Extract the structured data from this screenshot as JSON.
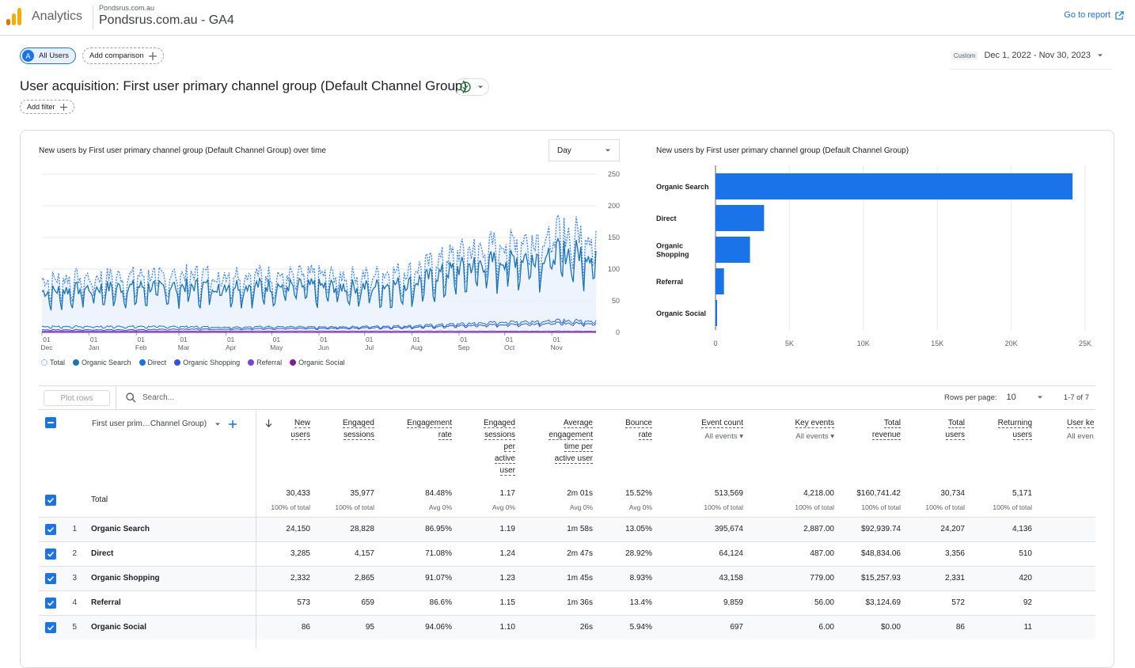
{
  "header": {
    "app_name": "Analytics",
    "account_name": "Pondsrus.com.au",
    "property_name": "Pondsrus.com.au - GA4",
    "goto_report": "Go to report"
  },
  "toolbar": {
    "segment_avatar": "A",
    "segment_label": "All Users",
    "add_comparison": "Add comparison",
    "date_badge": "Custom",
    "date_range": "Dec 1, 2022 - Nov 30, 2023",
    "add_filter": "Add filter"
  },
  "report": {
    "title": "User acquisition: First user primary channel group (Default Channel Group)"
  },
  "line_chart": {
    "title": "New users by First user primary channel group (Default Channel Group) over time",
    "granularity": "Day",
    "y_ticks": [
      "250",
      "200",
      "150",
      "100",
      "50",
      "0"
    ],
    "x_ticks": [
      {
        "day": "01",
        "month": "Dec"
      },
      {
        "day": "01",
        "month": "Jan"
      },
      {
        "day": "01",
        "month": "Feb"
      },
      {
        "day": "01",
        "month": "Mar"
      },
      {
        "day": "01",
        "month": "Apr"
      },
      {
        "day": "01",
        "month": "May"
      },
      {
        "day": "01",
        "month": "Jun"
      },
      {
        "day": "01",
        "month": "Jul"
      },
      {
        "day": "01",
        "month": "Aug"
      },
      {
        "day": "01",
        "month": "Sep"
      },
      {
        "day": "01",
        "month": "Oct"
      },
      {
        "day": "01",
        "month": "Nov"
      }
    ],
    "legend": [
      {
        "label": "Total",
        "color": "#4285f4"
      },
      {
        "label": "Organic Search",
        "color": "#1a73b8"
      },
      {
        "label": "Direct",
        "color": "#1a73e8"
      },
      {
        "label": "Organic Shopping",
        "color": "#3c4fd9"
      },
      {
        "label": "Referral",
        "color": "#7b3fe4"
      },
      {
        "label": "Organic Social",
        "color": "#7b1fa2"
      }
    ]
  },
  "bar_chart": {
    "title": "New users by First user primary channel group (Default Channel Group)",
    "x_ticks": [
      "0",
      "5K",
      "10K",
      "15K",
      "20K",
      "25K"
    ]
  },
  "chart_data": [
    {
      "type": "line",
      "title": "New users by First user primary channel group (Default Channel Group) over time",
      "ylim": [
        0,
        250
      ],
      "x": [
        "Dec",
        "Jan",
        "Feb",
        "Mar",
        "Apr",
        "May",
        "Jun",
        "Jul",
        "Aug",
        "Sep",
        "Oct",
        "Nov"
      ],
      "series": [
        {
          "name": "Total",
          "values": [
            78,
            82,
            84,
            86,
            88,
            86,
            85,
            84,
            92,
            118,
            135,
            148
          ]
        },
        {
          "name": "Organic Search",
          "values": [
            60,
            65,
            67,
            68,
            70,
            69,
            68,
            67,
            73,
            95,
            108,
            118
          ]
        },
        {
          "name": "Direct",
          "values": [
            9,
            9,
            9,
            9,
            8,
            9,
            8,
            9,
            10,
            13,
            16,
            18
          ]
        },
        {
          "name": "Organic Shopping",
          "values": [
            4,
            4,
            4,
            5,
            5,
            6,
            6,
            7,
            8,
            10,
            12,
            14
          ]
        },
        {
          "name": "Referral",
          "values": [
            2,
            2,
            2,
            2,
            2,
            2,
            2,
            2,
            2,
            2,
            2,
            2
          ]
        },
        {
          "name": "Organic Social",
          "values": [
            0.3,
            0.3,
            0.3,
            0.3,
            0.3,
            0.2,
            0.2,
            0.2,
            0.2,
            0.2,
            0.3,
            0.3
          ]
        }
      ]
    },
    {
      "type": "bar",
      "orientation": "horizontal",
      "title": "New users by First user primary channel group (Default Channel Group)",
      "categories": [
        "Organic Search",
        "Direct",
        "Organic Shopping",
        "Referral",
        "Organic Social"
      ],
      "values": [
        24150,
        3285,
        2332,
        573,
        86
      ],
      "xlim": [
        0,
        25000
      ]
    }
  ],
  "table": {
    "plot_rows": "Plot rows",
    "search_placeholder": "Search...",
    "rows_per_page_label": "Rows per page:",
    "rows_per_page": "10",
    "pagination": "1-7 of 7",
    "dimension_header": "First user prim…Channel Group)",
    "columns": [
      {
        "lines": [
          "New",
          "users"
        ],
        "sub": ""
      },
      {
        "lines": [
          "Engaged",
          "sessions"
        ],
        "sub": ""
      },
      {
        "lines": [
          "Engagement",
          "rate"
        ],
        "sub": ""
      },
      {
        "lines": [
          "Engaged",
          "sessions",
          "per",
          "active",
          "user"
        ],
        "sub": ""
      },
      {
        "lines": [
          "Average",
          "engagement",
          "time per",
          "active user"
        ],
        "sub": ""
      },
      {
        "lines": [
          "Bounce",
          "rate"
        ],
        "sub": ""
      },
      {
        "lines": [
          "Event count"
        ],
        "sub": "All events"
      },
      {
        "lines": [
          "Key events"
        ],
        "sub": "All events"
      },
      {
        "lines": [
          "Total",
          "revenue"
        ],
        "sub": ""
      },
      {
        "lines": [
          "Total",
          "users"
        ],
        "sub": ""
      },
      {
        "lines": [
          "Returning",
          "users"
        ],
        "sub": ""
      },
      {
        "lines": [
          "User ke"
        ],
        "sub": "All even"
      }
    ],
    "total": {
      "label": "Total",
      "values": [
        "30,433",
        "35,977",
        "84.48%",
        "1.17",
        "2m 01s",
        "15.52%",
        "513,569",
        "4,218.00",
        "$160,741.42",
        "30,734",
        "5,171"
      ],
      "subs": [
        "100% of total",
        "100% of total",
        "Avg 0%",
        "Avg 0%",
        "Avg 0%",
        "Avg 0%",
        "100% of total",
        "100% of total",
        "100% of total",
        "100% of total",
        "100% of total"
      ]
    },
    "rows": [
      {
        "num": "1",
        "name": "Organic Search",
        "values": [
          "24,150",
          "28,828",
          "86.95%",
          "1.19",
          "1m 58s",
          "13.05%",
          "395,674",
          "2,887.00",
          "$92,939.74",
          "24,207",
          "4,136"
        ]
      },
      {
        "num": "2",
        "name": "Direct",
        "values": [
          "3,285",
          "4,157",
          "71.08%",
          "1.24",
          "2m 47s",
          "28.92%",
          "64,124",
          "487.00",
          "$48,834.06",
          "3,356",
          "510"
        ]
      },
      {
        "num": "3",
        "name": "Organic Shopping",
        "values": [
          "2,332",
          "2,865",
          "91.07%",
          "1.23",
          "1m 45s",
          "8.93%",
          "43,158",
          "779.00",
          "$15,257.93",
          "2,331",
          "420"
        ]
      },
      {
        "num": "4",
        "name": "Referral",
        "values": [
          "573",
          "659",
          "86.6%",
          "1.15",
          "1m 36s",
          "13.4%",
          "9,859",
          "56.00",
          "$3,124.69",
          "572",
          "92"
        ]
      },
      {
        "num": "5",
        "name": "Organic Social",
        "values": [
          "86",
          "95",
          "94.06%",
          "1.10",
          "26s",
          "5.94%",
          "697",
          "6.00",
          "$0.00",
          "86",
          "11"
        ]
      }
    ]
  }
}
